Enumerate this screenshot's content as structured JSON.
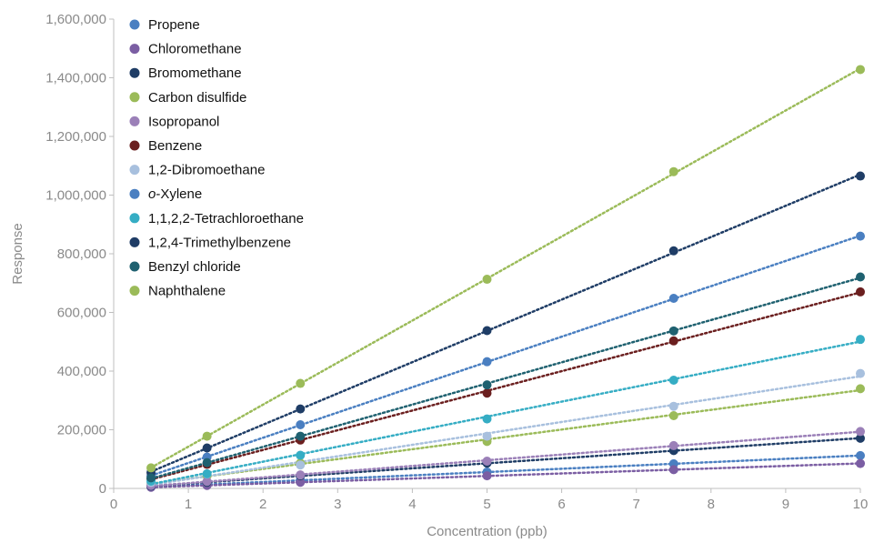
{
  "chart_data": {
    "type": "scatter",
    "xlabel": "Concentration (ppb)",
    "ylabel": "Response",
    "xlim": [
      0,
      10
    ],
    "ylim": [
      0,
      1600000
    ],
    "x_ticks": [
      "0",
      "1",
      "2",
      "3",
      "4",
      "5",
      "6",
      "7",
      "8",
      "9",
      "10"
    ],
    "y_ticks": [
      "0",
      "200,000",
      "400,000",
      "600,000",
      "800,000",
      "1,000,000",
      "1,200,000",
      "1,400,000",
      "1,600,000"
    ],
    "x": [
      0.5,
      1.25,
      2.5,
      5,
      7.5,
      10
    ],
    "grid": false,
    "legend_position": "top-left",
    "trendline": "linear, dotted",
    "series": [
      {
        "name": "Propene",
        "color": "#4a7fc1",
        "values": [
          5000,
          13000,
          28000,
          56000,
          84000,
          112000
        ]
      },
      {
        "name": "Chloromethane",
        "color": "#7b5ea3",
        "values": [
          4000,
          10000,
          21000,
          43000,
          64000,
          85000
        ]
      },
      {
        "name": "Bromomethane",
        "color": "#1f3d66",
        "values": [
          8000,
          21000,
          43000,
          86000,
          129000,
          171000
        ]
      },
      {
        "name": "Carbon disulfide",
        "color": "#9bbb59",
        "values": [
          17000,
          43000,
          86000,
          160000,
          248000,
          340000
        ]
      },
      {
        "name": "Isopropanol",
        "color": "#9b80b8",
        "values": [
          10000,
          24000,
          46000,
          93000,
          146000,
          194000
        ]
      },
      {
        "name": "Benzene",
        "color": "#6b1f1f",
        "values": [
          33000,
          82000,
          165000,
          325000,
          503000,
          670000
        ]
      },
      {
        "name": "1,2-Dibromoethane",
        "color": "#a8c0de",
        "values": [
          20000,
          49000,
          80000,
          178000,
          280000,
          392000
        ]
      },
      {
        "name": "o-Xylene",
        "color": "#4a7fc1",
        "values": [
          43000,
          107000,
          217000,
          432000,
          648000,
          860000
        ]
      },
      {
        "name": "1,1,2,2-Tetrachloroethane",
        "color": "#35adc4",
        "values": [
          25000,
          50000,
          113000,
          237000,
          369000,
          508000
        ]
      },
      {
        "name": "1,2,4-Trimethylbenzene",
        "color": "#1f3d66",
        "values": [
          54000,
          138000,
          271000,
          538000,
          810000,
          1065000
        ]
      },
      {
        "name": "Benzyl chloride",
        "color": "#1f6170",
        "values": [
          36000,
          88000,
          178000,
          353000,
          537000,
          721000
        ]
      },
      {
        "name": "Naphthalene",
        "color": "#9bbb59",
        "values": [
          70000,
          178000,
          358000,
          713000,
          1080000,
          1428000
        ]
      }
    ]
  }
}
